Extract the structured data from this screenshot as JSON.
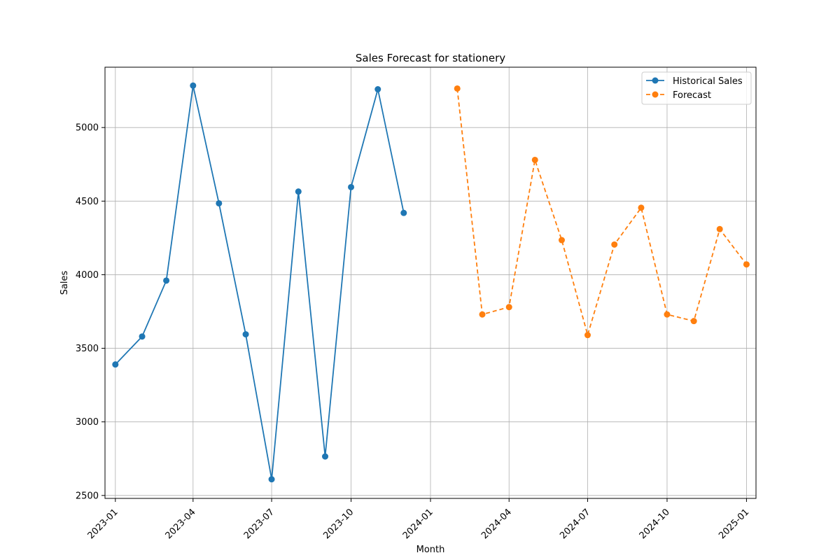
{
  "chart_data": {
    "type": "line",
    "title": "Sales Forecast for stationery",
    "xlabel": "Month",
    "ylabel": "Sales",
    "x_ticks": [
      "2023-01",
      "2023-04",
      "2023-07",
      "2023-10",
      "2024-01",
      "2024-04",
      "2024-07",
      "2024-10",
      "2025-01"
    ],
    "y_ticks": [
      2500,
      3000,
      3500,
      4000,
      4500,
      5000
    ],
    "xlim": [
      "2022-12-20",
      "2025-01-12"
    ],
    "ylim": [
      2480,
      5410
    ],
    "grid": true,
    "legend_position": "top-right",
    "series": [
      {
        "name": "Historical Sales",
        "color": "#1f77b4",
        "line_style": "solid",
        "marker": "circle",
        "x": [
          "2023-01",
          "2023-02",
          "2023-03",
          "2023-04",
          "2023-05",
          "2023-06",
          "2023-07",
          "2023-08",
          "2023-09",
          "2023-10",
          "2023-11",
          "2023-12"
        ],
        "values": [
          3390,
          3580,
          3960,
          5285,
          4485,
          3595,
          2610,
          4565,
          2765,
          4595,
          5260,
          4420
        ]
      },
      {
        "name": "Forecast",
        "color": "#ff7f0e",
        "line_style": "dashed",
        "marker": "circle",
        "x": [
          "2024-02",
          "2024-03",
          "2024-04",
          "2024-05",
          "2024-06",
          "2024-07",
          "2024-08",
          "2024-09",
          "2024-10",
          "2024-11",
          "2024-12",
          "2025-01"
        ],
        "values": [
          5265,
          3730,
          3780,
          4780,
          4235,
          3590,
          4205,
          4455,
          3730,
          3685,
          4310,
          4070
        ]
      }
    ]
  }
}
